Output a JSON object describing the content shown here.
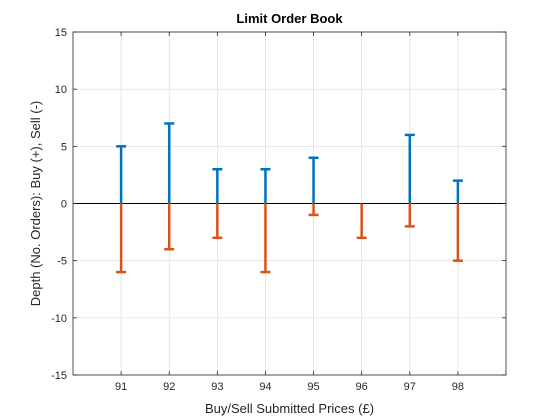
{
  "chart_data": {
    "type": "bar",
    "title": "Limit Order Book",
    "xlabel": "Buy/Sell Submitted Prices (£)",
    "ylabel": "Depth (No. Orders): Buy (+), Sell (-)",
    "categories": [
      "91",
      "92",
      "93",
      "94",
      "95",
      "96",
      "97",
      "98"
    ],
    "x": [
      91,
      92,
      93,
      94,
      95,
      96,
      97,
      98
    ],
    "xlim": [
      90,
      99
    ],
    "ylim": [
      -15,
      15
    ],
    "yticks": [
      -15,
      -10,
      -5,
      0,
      5,
      10,
      15
    ],
    "grid": true,
    "series": [
      {
        "values": [
          5,
          7,
          3,
          3,
          4,
          0,
          6,
          2
        ],
        "color": "#0072BD"
      },
      {
        "values": [
          -6,
          -4,
          -3,
          -6,
          -1,
          -3,
          -2,
          -5
        ],
        "color": "#D95319"
      }
    ]
  }
}
